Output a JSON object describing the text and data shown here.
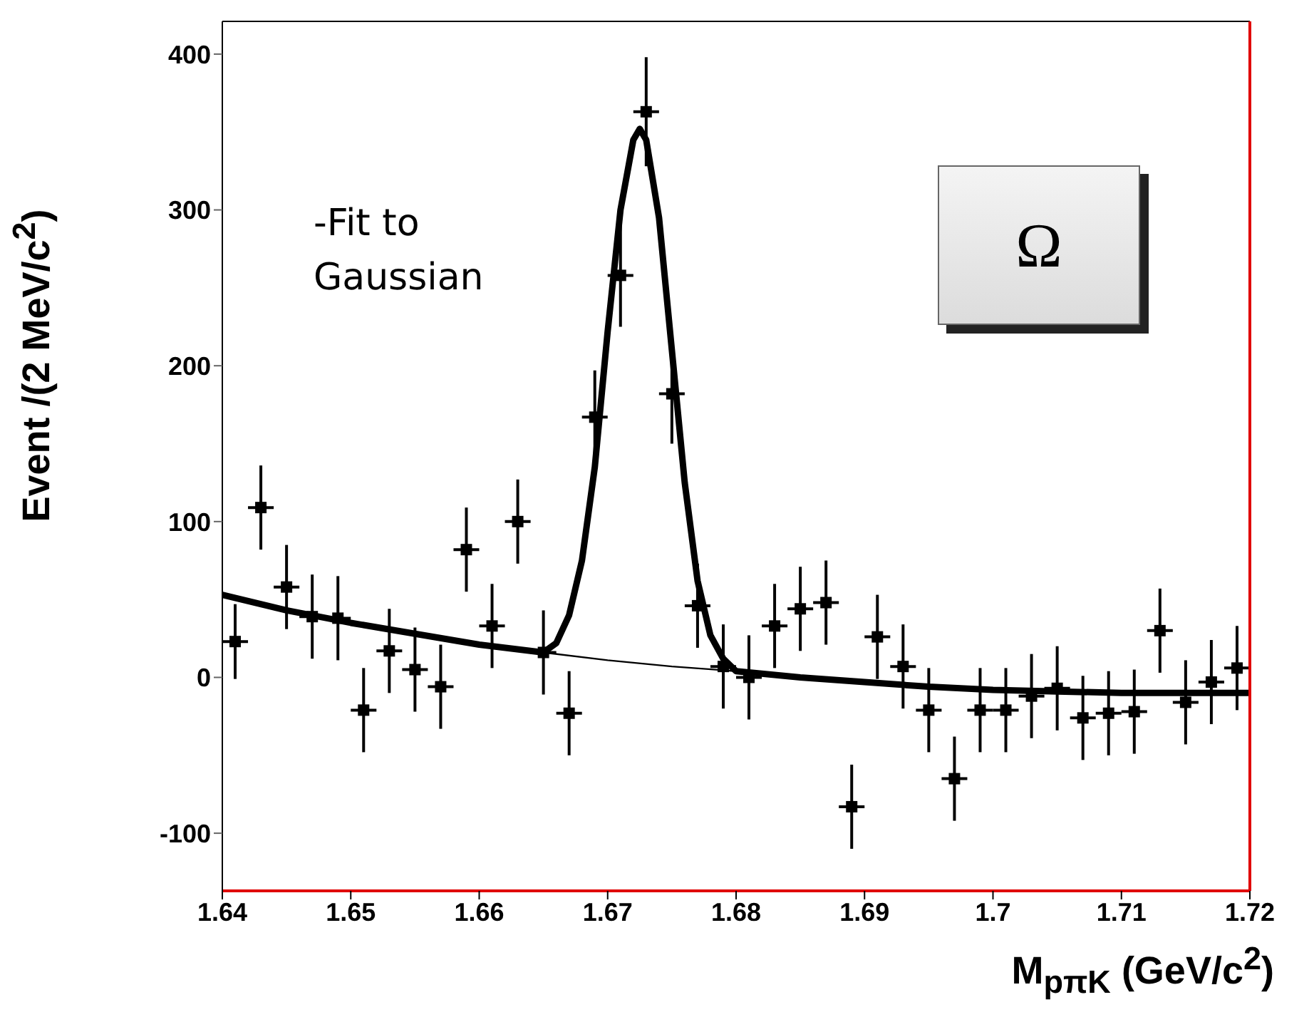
{
  "chart_data": {
    "type": "scatter",
    "xlabel": "M$_{pπK}$ (GeV/c$^{2}$)",
    "ylabel": "Event /(2 MeV/c$^{2}$)",
    "annotations": [
      "-Fit to Gaussian",
      "Ω"
    ],
    "xlim": [
      1.64,
      1.72
    ],
    "xticks": [
      1.64,
      1.65,
      1.66,
      1.67,
      1.68,
      1.69,
      1.7,
      1.71,
      1.72
    ],
    "ylim": [
      -137,
      421
    ],
    "yticks": [
      -100,
      0,
      100,
      200,
      300,
      400
    ],
    "legend": false,
    "series": [
      {
        "color": "#000000",
        "marker": "square",
        "x": [
          1.641,
          1.643,
          1.645,
          1.647,
          1.649,
          1.651,
          1.653,
          1.655,
          1.657,
          1.659,
          1.661,
          1.663,
          1.665,
          1.667,
          1.669,
          1.671,
          1.673,
          1.675,
          1.677,
          1.679,
          1.681,
          1.683,
          1.685,
          1.687,
          1.689,
          1.691,
          1.693,
          1.695,
          1.697,
          1.699,
          1.701,
          1.703,
          1.705,
          1.707,
          1.709,
          1.711,
          1.713,
          1.715,
          1.717,
          1.719
        ],
        "values": [
          23,
          109,
          58,
          39,
          38,
          -21,
          17,
          5,
          -6,
          82,
          33,
          100,
          16,
          -23,
          167,
          258,
          363,
          182,
          46,
          7,
          0,
          33,
          44,
          48,
          -83,
          26,
          7,
          -21,
          -65,
          -21,
          -21,
          -12,
          -7,
          -26,
          -23,
          -22,
          30,
          -16,
          -3,
          6
        ],
        "errors": [
          24,
          27,
          27,
          27,
          27,
          27,
          27,
          27,
          27,
          27,
          27,
          27,
          27,
          27,
          30,
          33,
          35,
          32,
          27,
          27,
          27,
          27,
          27,
          27,
          27,
          27,
          27,
          27,
          27,
          27,
          27,
          27,
          27,
          27,
          27,
          27,
          27,
          27,
          27,
          27
        ],
        "xerrors": [
          0.001,
          0.001,
          0.001,
          0.001,
          0.001,
          0.001,
          0.001,
          0.001,
          0.001,
          0.001,
          0.001,
          0.001,
          0.001,
          0.001,
          0.001,
          0.001,
          0.001,
          0.001,
          0.001,
          0.001,
          0.001,
          0.001,
          0.001,
          0.001,
          0.001,
          0.001,
          0.001,
          0.001,
          0.001,
          0.001,
          0.001,
          0.001,
          0.001,
          0.001,
          0.001,
          0.001,
          0.001,
          0.001,
          0.001,
          0.001
        ]
      },
      {
        "type": "line",
        "color": "#000000",
        "line_style": "solid",
        "x": [
          1.64,
          1.645,
          1.65,
          1.655,
          1.66,
          1.665,
          1.666,
          1.667,
          1.668,
          1.669,
          1.67,
          1.671,
          1.672,
          1.6725,
          1.673,
          1.674,
          1.675,
          1.676,
          1.677,
          1.678,
          1.679,
          1.68,
          1.685,
          1.69,
          1.695,
          1.7,
          1.705,
          1.71,
          1.715,
          1.72
        ],
        "values": [
          53,
          43,
          35,
          28,
          21,
          16,
          22,
          40,
          75,
          135,
          222,
          300,
          345,
          352,
          345,
          295,
          210,
          125,
          62,
          27,
          12,
          4,
          0,
          -3,
          -6,
          -8,
          -9,
          -10,
          -10,
          -10
        ]
      },
      {
        "type": "line",
        "color": "#000000",
        "line_style": "solid",
        "x": [
          1.64,
          1.65,
          1.66,
          1.665,
          1.67,
          1.675,
          1.68,
          1.69,
          1.7,
          1.71,
          1.72
        ],
        "values": [
          53,
          35,
          21,
          16,
          11,
          7,
          4,
          -3,
          -8,
          -10,
          -10
        ]
      }
    ]
  }
}
